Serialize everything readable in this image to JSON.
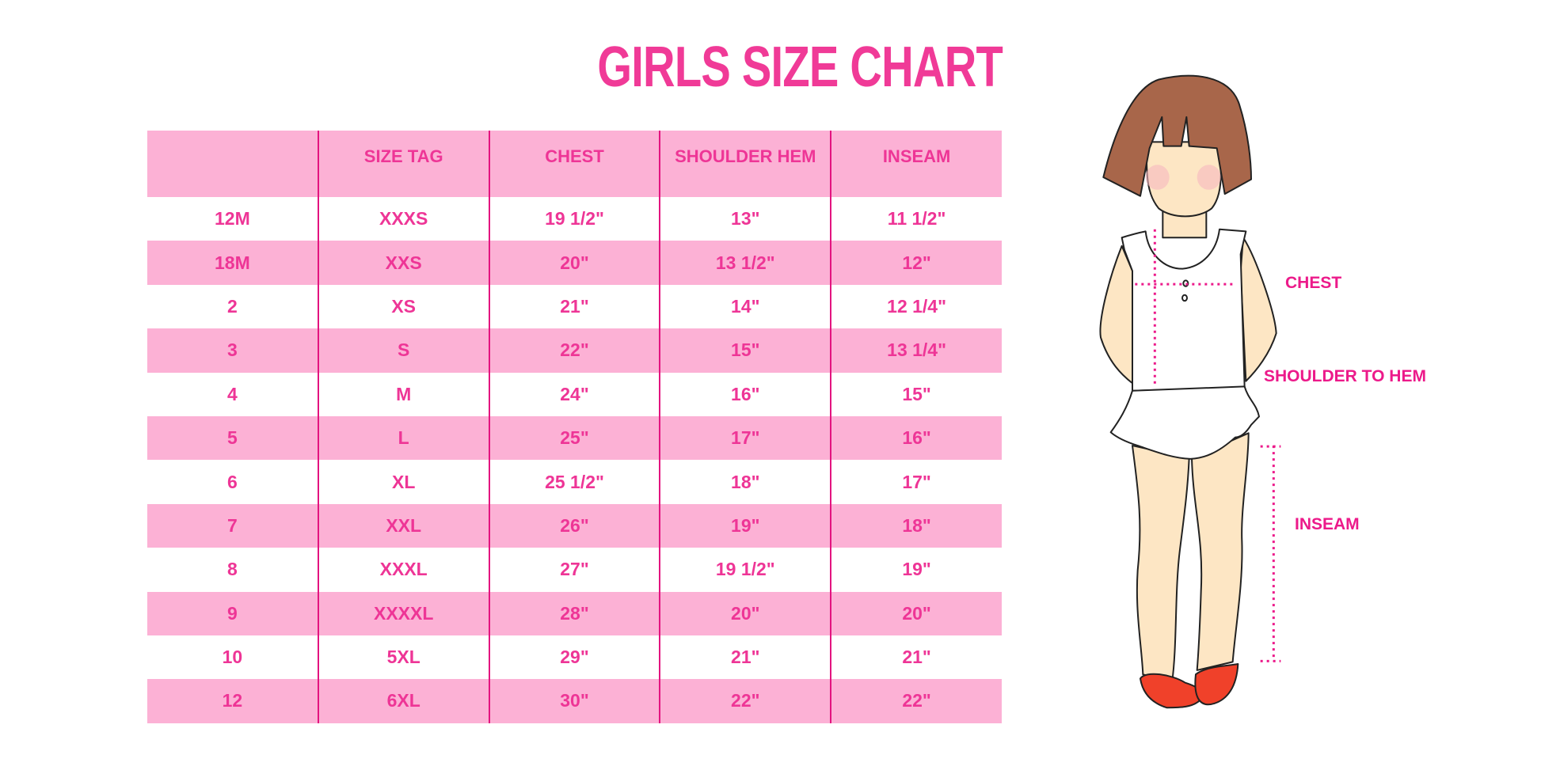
{
  "title": "GIRLS SIZE CHART",
  "table": {
    "headers": [
      "",
      "SIZE TAG",
      "CHEST",
      "SHOULDER HEM",
      "INSEAM"
    ],
    "rows": [
      [
        "12M",
        "XXXS",
        "19 1/2\"",
        "13\"",
        "11 1/2\""
      ],
      [
        "18M",
        "XXS",
        "20\"",
        "13 1/2\"",
        "12\""
      ],
      [
        "2",
        "XS",
        "21\"",
        "14\"",
        "12 1/4\""
      ],
      [
        "3",
        "S",
        "22\"",
        "15\"",
        "13 1/4\""
      ],
      [
        "4",
        "M",
        "24\"",
        "16\"",
        "15\""
      ],
      [
        "5",
        "L",
        "25\"",
        "17\"",
        "16\""
      ],
      [
        "6",
        "XL",
        "25 1/2\"",
        "18\"",
        "17\""
      ],
      [
        "7",
        "XXL",
        "26\"",
        "19\"",
        "18\""
      ],
      [
        "8",
        "XXXL",
        "27\"",
        "19 1/2\"",
        "19\""
      ],
      [
        "9",
        "XXXXL",
        "28\"",
        "20\"",
        "20\""
      ],
      [
        "10",
        "5XL",
        "29\"",
        "21\"",
        "21\""
      ],
      [
        "12",
        "6XL",
        "30\"",
        "22\"",
        "22\""
      ]
    ]
  },
  "figure_labels": {
    "chest": "CHEST",
    "shoulder_to_hem": "SHOULDER TO HEM",
    "inseam": "INSEAM"
  },
  "colors": {
    "accent": "#ee3596",
    "band": "#fcb1d5",
    "divider": "#e3137f",
    "hair": "#a8664a",
    "skin": "#fde6c4",
    "shoes": "#f0412a"
  }
}
